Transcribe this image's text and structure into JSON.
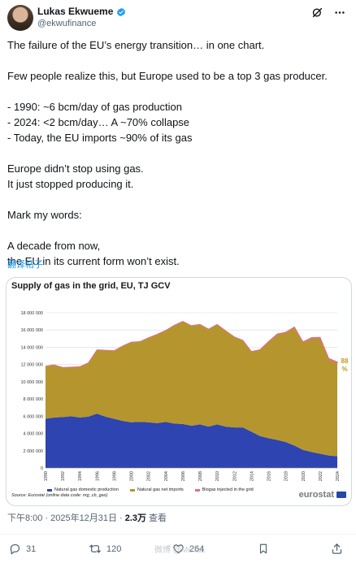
{
  "author": {
    "name": "Lukas Ekwueme",
    "handle": "@ekwufinance"
  },
  "colors": {
    "verified": "#1d9bf0",
    "domestic": "#2e44b0",
    "imports": "#b5962e",
    "biogas": "#e2717f",
    "link": "#1d9bf0"
  },
  "icons": {
    "grok": "grok-icon",
    "more": "more-icon"
  },
  "tweet": {
    "lines": [
      "The failure of the EU’s energy transition… in one chart.",
      "",
      "Few people realize this, but Europe used to be a top 3 gas producer.",
      "",
      "- 1990: ~6 bcm/day of gas production",
      "- 2024: <2 bcm/day… A ~70% collapse",
      "- Today, the EU imports ~90% of its gas",
      "",
      "Europe didn’t stop using gas.",
      "It just stopped producing it.",
      "",
      "Mark my words:",
      "",
      "A decade from now,",
      "the EU in its current form won’t exist."
    ],
    "translate_label": "翻译帖子"
  },
  "chart_data": {
    "type": "area",
    "title": "Supply of gas in the grid, EU, TJ GCV",
    "x": [
      1990,
      1991,
      1992,
      1993,
      1994,
      1995,
      1996,
      1997,
      1998,
      1999,
      2000,
      2001,
      2002,
      2003,
      2004,
      2005,
      2006,
      2007,
      2008,
      2009,
      2010,
      2011,
      2012,
      2013,
      2014,
      2015,
      2016,
      2017,
      2018,
      2019,
      2020,
      2021,
      2022,
      2023,
      2024
    ],
    "x_tick_labels": [
      "1990",
      "1992",
      "1994",
      "1996",
      "1998",
      "2000",
      "2002",
      "2004",
      "2006",
      "2008",
      "2010",
      "2012",
      "2014",
      "2016",
      "2018",
      "2020",
      "2022",
      "2024"
    ],
    "y_tick_labels": [
      "0",
      "2 000 000",
      "4 000 000",
      "6 000 000",
      "8 000 000",
      "10 000 000",
      "12 000 000",
      "14 000 000",
      "16 000 000",
      "18 000 000"
    ],
    "ylim": [
      0,
      18000000
    ],
    "stacked": true,
    "series": [
      {
        "name": "Natural gas domestic production",
        "values": [
          5700000,
          5850000,
          5900000,
          6000000,
          5850000,
          5950000,
          6300000,
          5950000,
          5700000,
          5450000,
          5300000,
          5350000,
          5300000,
          5200000,
          5350000,
          5150000,
          5100000,
          4900000,
          5050000,
          4800000,
          5050000,
          4800000,
          4700000,
          4700000,
          4200000,
          3700000,
          3450000,
          3250000,
          3000000,
          2600000,
          2100000,
          1850000,
          1650000,
          1450000,
          1350000
        ]
      },
      {
        "name": "Natural gas net imports",
        "values": [
          6100000,
          6100000,
          5750000,
          5700000,
          5900000,
          6250000,
          7400000,
          7700000,
          7900000,
          8700000,
          9300000,
          9300000,
          9800000,
          10300000,
          10600000,
          11400000,
          11900000,
          11600000,
          11600000,
          11300000,
          11600000,
          11100000,
          10500000,
          10100000,
          9300000,
          10000000,
          11200000,
          12250000,
          12700000,
          13700000,
          12450000,
          13200000,
          13400000,
          11150000,
          10800000
        ]
      },
      {
        "name": "Biogas injected in the grid",
        "values": [
          0,
          0,
          0,
          0,
          0,
          0,
          0,
          0,
          0,
          0,
          0,
          0,
          0,
          0,
          0,
          0,
          0,
          0,
          0,
          0,
          0,
          0,
          0,
          0,
          0,
          20000,
          30000,
          40000,
          50000,
          60000,
          70000,
          80000,
          100000,
          120000,
          140000
        ]
      }
    ],
    "annotation": {
      "value": "88",
      "unit": "%"
    },
    "source": "Source: Eurostat (online data code: nrg_cb_gas)",
    "brand": "eurostat",
    "grid": true,
    "legend": "bottom"
  },
  "meta": {
    "time": "下午8:00",
    "date": "2025年12月31日",
    "views": "2.3万",
    "views_label": "查看",
    "separator": "·"
  },
  "actions": {
    "replies": "31",
    "reposts": "120",
    "likes": "264"
  },
  "watermark": "微博 @MeTaL"
}
